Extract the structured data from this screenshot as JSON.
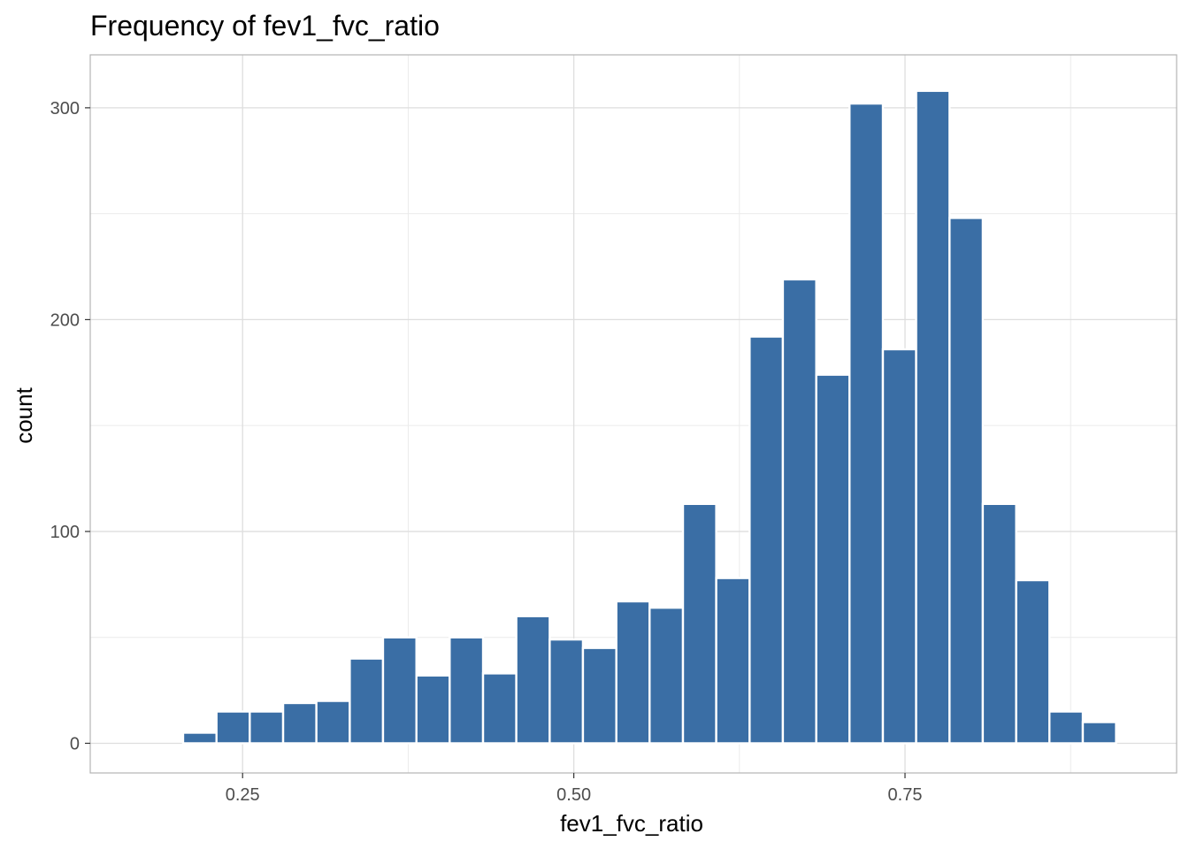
{
  "chart_data": {
    "type": "bar",
    "title": "Frequency of fev1_fvc_ratio",
    "xlabel": "fev1_fvc_ratio",
    "ylabel": "count",
    "xlim": [
      0.135,
      0.955
    ],
    "ylim": [
      -14,
      325
    ],
    "x_ticks": [
      0.25,
      0.5,
      0.75
    ],
    "x_tick_labels": [
      "0.25",
      "0.50",
      "0.75"
    ],
    "y_ticks": [
      0,
      100,
      200,
      300
    ],
    "y_tick_labels": [
      "0",
      "100",
      "200",
      "300"
    ],
    "grid": true,
    "bar_color": "#3a6ea5",
    "bins": [
      {
        "x0": 0.1548,
        "x1": 0.18,
        "count": 0
      },
      {
        "x0": 0.18,
        "x1": 0.2051,
        "count": 0
      },
      {
        "x0": 0.2051,
        "x1": 0.2303,
        "count": 5
      },
      {
        "x0": 0.2303,
        "x1": 0.2554,
        "count": 15
      },
      {
        "x0": 0.2554,
        "x1": 0.2806,
        "count": 15
      },
      {
        "x0": 0.2806,
        "x1": 0.3057,
        "count": 19
      },
      {
        "x0": 0.3057,
        "x1": 0.3309,
        "count": 20
      },
      {
        "x0": 0.3309,
        "x1": 0.356,
        "count": 40
      },
      {
        "x0": 0.356,
        "x1": 0.3812,
        "count": 50
      },
      {
        "x0": 0.3812,
        "x1": 0.4063,
        "count": 32
      },
      {
        "x0": 0.4063,
        "x1": 0.4315,
        "count": 50
      },
      {
        "x0": 0.4315,
        "x1": 0.4566,
        "count": 33
      },
      {
        "x0": 0.4566,
        "x1": 0.4818,
        "count": 60
      },
      {
        "x0": 0.4818,
        "x1": 0.5069,
        "count": 49
      },
      {
        "x0": 0.5069,
        "x1": 0.5321,
        "count": 45
      },
      {
        "x0": 0.5321,
        "x1": 0.5572,
        "count": 67
      },
      {
        "x0": 0.5572,
        "x1": 0.5824,
        "count": 64
      },
      {
        "x0": 0.5824,
        "x1": 0.6075,
        "count": 113
      },
      {
        "x0": 0.6075,
        "x1": 0.6327,
        "count": 78
      },
      {
        "x0": 0.6327,
        "x1": 0.6578,
        "count": 192
      },
      {
        "x0": 0.6578,
        "x1": 0.683,
        "count": 219
      },
      {
        "x0": 0.683,
        "x1": 0.7081,
        "count": 174
      },
      {
        "x0": 0.7081,
        "x1": 0.7333,
        "count": 302
      },
      {
        "x0": 0.7333,
        "x1": 0.7584,
        "count": 186
      },
      {
        "x0": 0.7584,
        "x1": 0.7836,
        "count": 308
      },
      {
        "x0": 0.7836,
        "x1": 0.8087,
        "count": 248
      },
      {
        "x0": 0.8087,
        "x1": 0.8339,
        "count": 113
      },
      {
        "x0": 0.8339,
        "x1": 0.859,
        "count": 77
      },
      {
        "x0": 0.859,
        "x1": 0.8842,
        "count": 15
      },
      {
        "x0": 0.8842,
        "x1": 0.9093,
        "count": 10
      }
    ]
  }
}
